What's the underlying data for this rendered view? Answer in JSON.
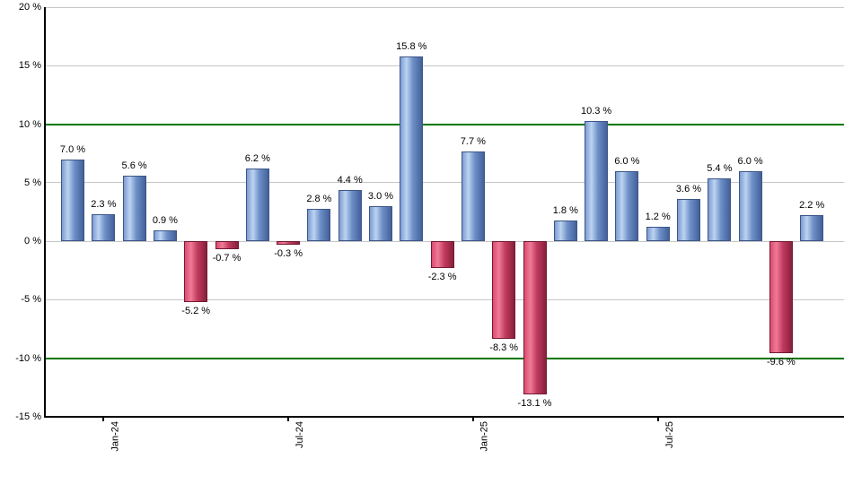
{
  "chart_data": {
    "type": "bar",
    "title": "",
    "xlabel": "",
    "ylabel": "",
    "ylim": [
      -15,
      20
    ],
    "grid": true,
    "legend": "none",
    "value_label_format": "X.X %",
    "bars": [
      {
        "value": 7.0,
        "label": "7.0 %",
        "color": "positive"
      },
      {
        "value": 2.3,
        "label": "2.3 %",
        "color": "positive"
      },
      {
        "value": 5.6,
        "label": "5.6 %",
        "color": "positive"
      },
      {
        "value": 0.9,
        "label": "0.9 %",
        "color": "positive"
      },
      {
        "value": -5.2,
        "label": "-5.2 %",
        "color": "negative"
      },
      {
        "value": -0.7,
        "label": "-0.7 %",
        "color": "negative"
      },
      {
        "value": 6.2,
        "label": "6.2 %",
        "color": "positive"
      },
      {
        "value": -0.3,
        "label": "-0.3 %",
        "color": "negative"
      },
      {
        "value": 2.8,
        "label": "2.8 %",
        "color": "positive"
      },
      {
        "value": 4.4,
        "label": "4.4 %",
        "color": "positive"
      },
      {
        "value": 3.0,
        "label": "3.0 %",
        "color": "positive"
      },
      {
        "value": 15.8,
        "label": "15.8 %",
        "color": "positive"
      },
      {
        "value": -2.3,
        "label": "-2.3 %",
        "color": "negative"
      },
      {
        "value": 7.7,
        "label": "7.7 %",
        "color": "positive"
      },
      {
        "value": -8.3,
        "label": "-8.3 %",
        "color": "negative"
      },
      {
        "value": -13.1,
        "label": "-13.1 %",
        "color": "negative"
      },
      {
        "value": 1.8,
        "label": "1.8 %",
        "color": "positive"
      },
      {
        "value": 10.3,
        "label": "10.3 %",
        "color": "positive"
      },
      {
        "value": 6.0,
        "label": "6.0 %",
        "color": "positive"
      },
      {
        "value": 1.2,
        "label": "1.2 %",
        "color": "positive"
      },
      {
        "value": 3.6,
        "label": "3.6 %",
        "color": "positive"
      },
      {
        "value": 5.4,
        "label": "5.4 %",
        "color": "positive"
      },
      {
        "value": 6.0,
        "label": "6.0 %",
        "color": "positive"
      },
      {
        "value": -9.6,
        "label": "-9.6 %",
        "color": "negative"
      },
      {
        "value": 2.2,
        "label": "2.2 %",
        "color": "positive"
      }
    ],
    "xticks": [
      {
        "bar_index": 1,
        "label": "Jan-24"
      },
      {
        "bar_index": 7,
        "label": "Jul-24"
      },
      {
        "bar_index": 13,
        "label": "Jan-25"
      },
      {
        "bar_index": 19,
        "label": "Jul-25"
      }
    ],
    "yticks": [
      {
        "value": 20,
        "label": "20 %"
      },
      {
        "value": 15,
        "label": "15 %"
      },
      {
        "value": 10,
        "label": "10 %"
      },
      {
        "value": 5,
        "label": "5 %"
      },
      {
        "value": 0,
        "label": "0 %"
      },
      {
        "value": -5,
        "label": "-5 %"
      },
      {
        "value": -10,
        "label": "-10 %"
      },
      {
        "value": -15,
        "label": "-15 %"
      }
    ],
    "reference_lines": [
      {
        "value": 10
      },
      {
        "value": -10
      }
    ],
    "colors": {
      "positive_stops": [
        "#7d9bd2",
        "#bcd3f1",
        "#6d8fc7",
        "#44609a"
      ],
      "positive_border": "#3c5688",
      "negative_stops": [
        "#dd4a70",
        "#ee7b97",
        "#c23a5e",
        "#86203c"
      ],
      "negative_border": "#731a33",
      "reference_line": "#007700",
      "gridline": "#c6c6c6",
      "axis": "#000000",
      "background": "#ffffff",
      "label_text": "#000000"
    }
  }
}
